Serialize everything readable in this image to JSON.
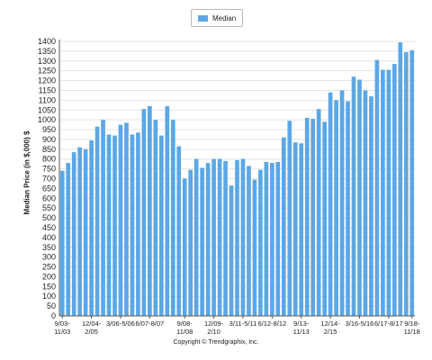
{
  "legend": {
    "label": "Median"
  },
  "footer": {
    "copyright": "Copyright © Trendgraphix, Inc."
  },
  "colors": {
    "bar": "#5ba7e6",
    "grid": "#e3e3e3",
    "axis": "#555555"
  },
  "chart_data": {
    "type": "bar",
    "title": "",
    "xlabel": "",
    "ylabel": "Median Price (in $,000) $",
    "ylim": [
      0,
      1400
    ],
    "grid": true,
    "legend_position": "top-center",
    "series": [
      {
        "name": "Median",
        "values": [
          740,
          780,
          835,
          860,
          850,
          895,
          965,
          1000,
          925,
          920,
          975,
          985,
          925,
          935,
          1055,
          1070,
          1000,
          920,
          1070,
          1000,
          865,
          700,
          745,
          800,
          755,
          780,
          800,
          800,
          790,
          665,
          795,
          800,
          765,
          695,
          745,
          785,
          780,
          785,
          910,
          995,
          885,
          880,
          1010,
          1005,
          1055,
          990,
          1140,
          1100,
          1150,
          1095,
          1220,
          1205,
          1150,
          1120,
          1305,
          1255,
          1255,
          1285,
          1395,
          1345,
          1355
        ]
      }
    ],
    "yticks": [
      "0",
      "50",
      "100",
      "150",
      "200",
      "250",
      "300",
      "350",
      "400",
      "450",
      "500",
      "550",
      "600",
      "650",
      "700",
      "750",
      "800",
      "850",
      "900",
      "950",
      "1000",
      "1050",
      "1100",
      "1150",
      "1200",
      "1250",
      "1300",
      "1350",
      "1400"
    ],
    "xticks": [
      {
        "index": 0,
        "lines": [
          "9/03-",
          "11/03"
        ]
      },
      {
        "index": 5,
        "lines": [
          "12/04-",
          "2/05"
        ]
      },
      {
        "index": 10,
        "lines": [
          "3/06-5/06"
        ]
      },
      {
        "index": 15,
        "lines": [
          "6/07-8/07"
        ]
      },
      {
        "index": 21,
        "lines": [
          "9/08-",
          "11/08"
        ]
      },
      {
        "index": 26,
        "lines": [
          "12/09-",
          "2/10"
        ]
      },
      {
        "index": 31,
        "lines": [
          "3/11-5/11"
        ]
      },
      {
        "index": 36,
        "lines": [
          "6/12-8/12"
        ]
      },
      {
        "index": 41,
        "lines": [
          "9/13-",
          "11/13"
        ]
      },
      {
        "index": 46,
        "lines": [
          "12/14-",
          "2/15"
        ]
      },
      {
        "index": 51,
        "lines": [
          "3/16-5/16"
        ]
      },
      {
        "index": 56,
        "lines": [
          "6/17-8/17"
        ]
      },
      {
        "index": 60,
        "lines": [
          "9/18-",
          "11/18"
        ]
      }
    ]
  }
}
